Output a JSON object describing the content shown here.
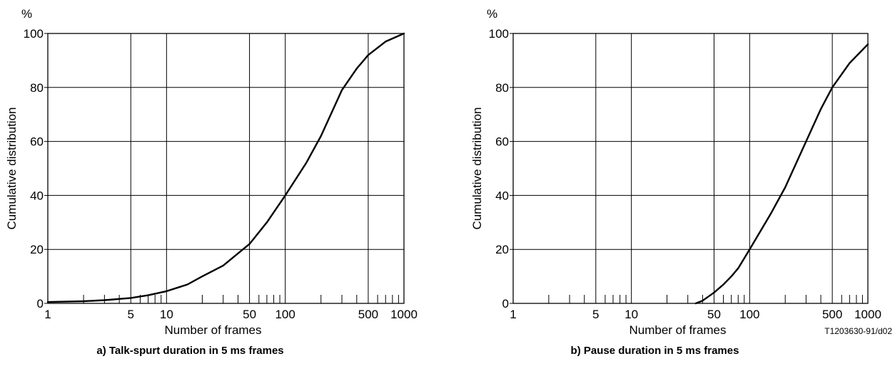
{
  "figure_code": "T1203630-91/d02",
  "chart_data": [
    {
      "type": "line",
      "caption": "a) Talk-spurt duration in 5 ms frames",
      "xlabel": "Number of frames",
      "ylabel": "Cumulative distribution",
      "yunit": "%",
      "xscale": "log",
      "xlim": [
        1,
        1000
      ],
      "ylim": [
        0,
        100
      ],
      "grid": true,
      "x_tick_labels": [
        "1",
        "5",
        "10",
        "50",
        "100",
        "500",
        "1000"
      ],
      "y_tick_labels": [
        "0",
        "20",
        "40",
        "60",
        "80",
        "100"
      ],
      "series": [
        {
          "x": [
            1,
            2,
            3,
            5,
            7,
            10,
            15,
            20,
            30,
            50,
            70,
            100,
            150,
            200,
            300,
            400,
            500,
            700,
            1000
          ],
          "y": [
            0.5,
            0.8,
            1.2,
            2,
            3,
            4.5,
            7,
            10,
            14,
            22,
            30,
            40,
            52,
            62,
            79,
            87,
            92,
            97,
            100
          ]
        }
      ]
    },
    {
      "type": "line",
      "caption": "b) Pause duration in 5 ms frames",
      "xlabel": "Number of frames",
      "ylabel": "Cumulative distribution",
      "yunit": "%",
      "xscale": "log",
      "xlim": [
        1,
        1000
      ],
      "ylim": [
        0,
        100
      ],
      "grid": true,
      "x_tick_labels": [
        "1",
        "5",
        "10",
        "50",
        "100",
        "500",
        "1000"
      ],
      "y_tick_labels": [
        "0",
        "20",
        "40",
        "60",
        "80",
        "100"
      ],
      "series": [
        {
          "x": [
            35,
            40,
            50,
            60,
            70,
            80,
            100,
            150,
            200,
            300,
            400,
            500,
            700,
            1000
          ],
          "y": [
            0,
            1,
            4,
            7,
            10,
            13,
            20,
            33,
            43,
            60,
            72,
            80,
            89,
            96
          ]
        }
      ]
    }
  ]
}
